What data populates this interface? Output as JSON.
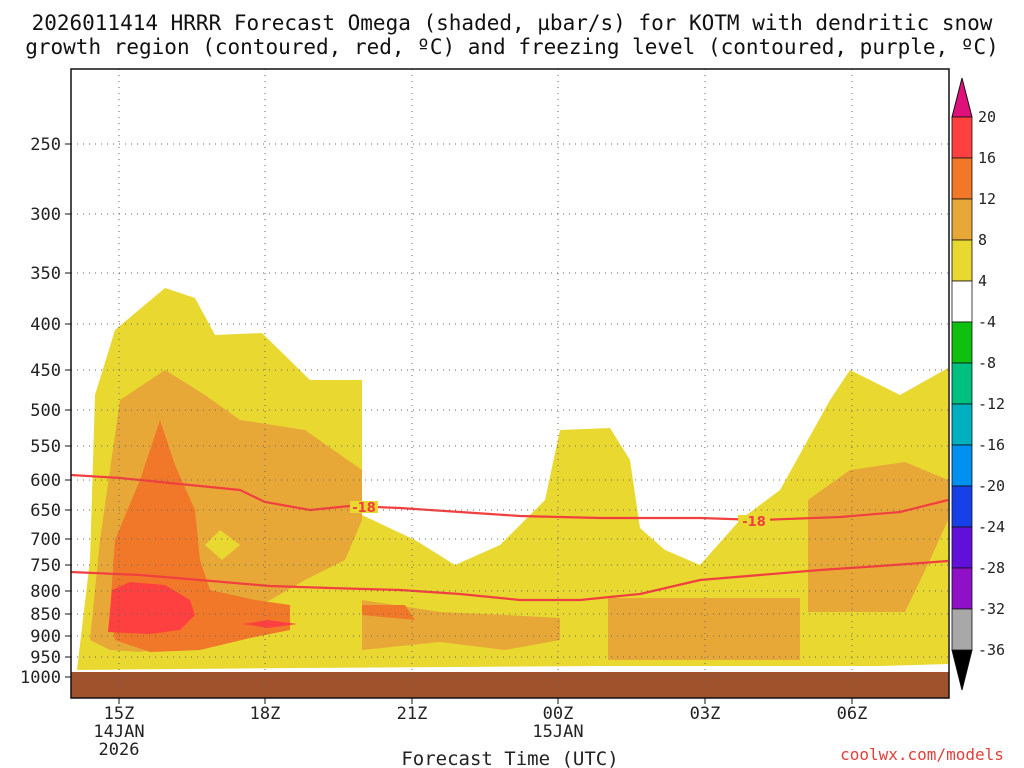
{
  "chart_data": {
    "type": "contour",
    "title_line1": "2026011414 HRRR Forecast Omega (shaded, µbar/s) for KOTM with dendritic snow",
    "title_line2": "growth region (contoured, red, ºC) and freezing level (contoured, purple, ºC)",
    "xlabel": "Forecast Time (UTC)",
    "credit": "coolwx.com/models",
    "x_ticks": [
      {
        "label": "15Z",
        "sub1": "14JAN",
        "sub2": "2026"
      },
      {
        "label": "18Z",
        "sub1": "",
        "sub2": ""
      },
      {
        "label": "21Z",
        "sub1": "",
        "sub2": ""
      },
      {
        "label": "00Z",
        "sub1": "15JAN",
        "sub2": ""
      },
      {
        "label": "03Z",
        "sub1": "",
        "sub2": ""
      },
      {
        "label": "06Z",
        "sub1": "",
        "sub2": ""
      }
    ],
    "y_ticks": [
      "250",
      "300",
      "350",
      "400",
      "450",
      "500",
      "550",
      "600",
      "650",
      "700",
      "750",
      "800",
      "850",
      "900",
      "950",
      "1000"
    ],
    "colorbar_labels": [
      "20",
      "16",
      "12",
      "8",
      "4",
      "-4",
      "-8",
      "-12",
      "-16",
      "-20",
      "-24",
      "-28",
      "-32",
      "-36"
    ],
    "colorbar_colors": [
      "#ff4040",
      "#f07828",
      "#e8a838",
      "#e8d830",
      "#ffffff",
      "#10c010",
      "#00c080",
      "#00b0c0",
      "#0090f0",
      "#1840e8",
      "#6010d8",
      "#9010c8",
      "#a8a8a8"
    ],
    "contour_labels": [
      "-18",
      "-18"
    ],
    "contour_colors": {
      "dgz": "#f04040",
      "ground": "#a0522d",
      "lt4": "#e8d830",
      "lt8": "#e8a838",
      "lt12": "#f07828",
      "lt16": "#ff4040"
    }
  }
}
